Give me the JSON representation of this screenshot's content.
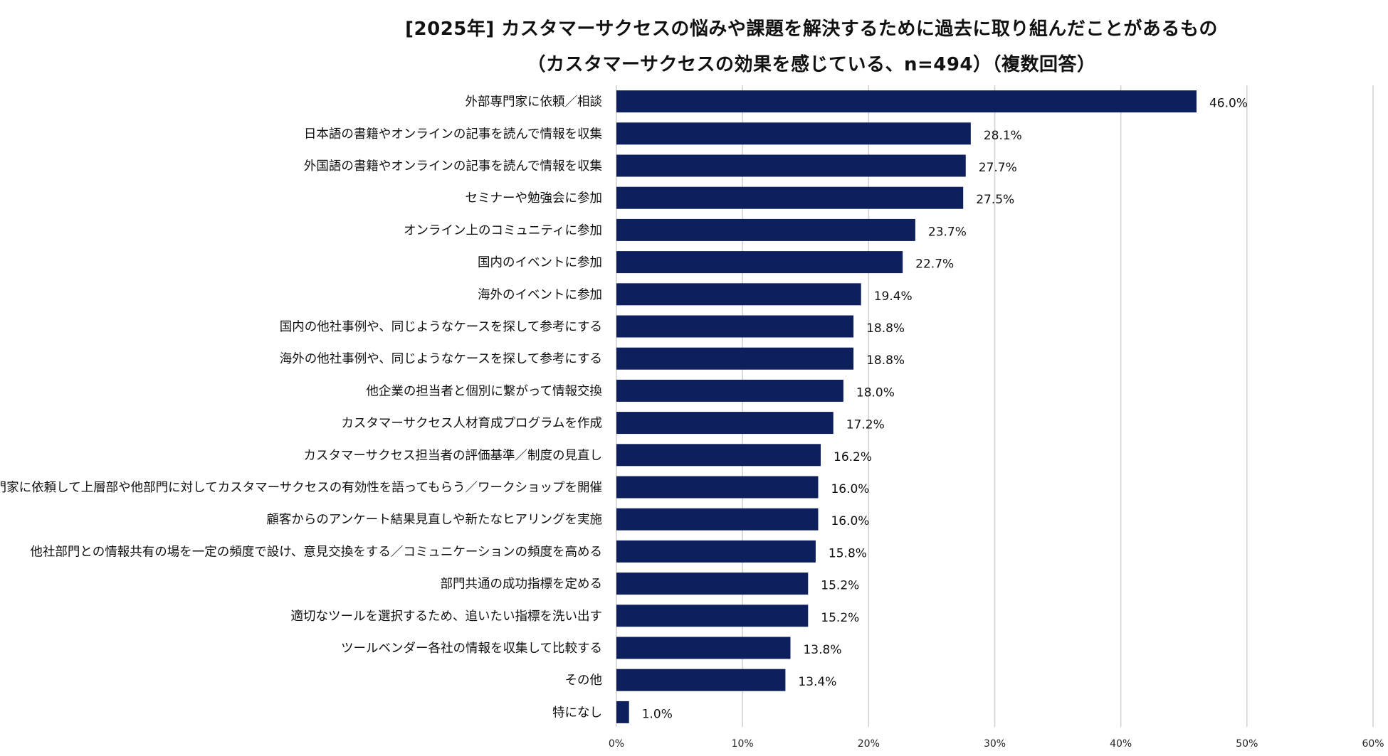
{
  "chart_data": {
    "type": "bar",
    "orientation": "horizontal",
    "title": "[2025年] カスタマーサクセスの悩みや課題を解決するために過去に取り組んだことがあるもの",
    "subtitle": "（カスタマーサクセスの効果を感じている、n=494）（複数回答）",
    "categories": [
      "外部専門家に依頼／相談",
      "日本語の書籍やオンラインの記事を読んで情報を収集",
      "外国語の書籍やオンラインの記事を読んで情報を収集",
      "セミナーや勉強会に参加",
      "オンライン上のコミュニティに参加",
      "国内のイベントに参加",
      "海外のイベントに参加",
      "国内の他社事例や、同じようなケースを探して参考にする",
      "海外の他社事例や、同じようなケースを探して参考にする",
      "他企業の担当者と個別に繋がって情報交換",
      "カスタマーサクセス人材育成プログラムを作成",
      "カスタマーサクセス担当者の評価基準／制度の見直し",
      "専門家に依頼して上層部や他部門に対してカスタマーサクセスの有効性を語ってもらう／ワークショップを開催",
      "顧客からのアンケート結果見直しや新たなヒアリングを実施",
      "他社部門との情報共有の場を一定の頻度で設け、意見交換をする／コミュニケーションの頻度を高める",
      "部門共通の成功指標を定める",
      "適切なツールを選択するため、追いたい指標を洗い出す",
      "ツールベンダー各社の情報を収集して比較する",
      "その他",
      "特になし"
    ],
    "values": [
      46.0,
      28.1,
      27.7,
      27.5,
      23.7,
      22.7,
      19.4,
      18.8,
      18.8,
      18.0,
      17.2,
      16.2,
      16.0,
      16.0,
      15.8,
      15.2,
      15.2,
      13.8,
      13.4,
      1.0
    ],
    "value_labels": [
      "46.0%",
      "28.1%",
      "27.7%",
      "27.5%",
      "23.7%",
      "22.7%",
      "19.4%",
      "18.8%",
      "18.8%",
      "18.0%",
      "17.2%",
      "16.2%",
      "16.0%",
      "16.0%",
      "15.8%",
      "15.2%",
      "15.2%",
      "13.8%",
      "13.4%",
      "1.0%"
    ],
    "xlim": [
      0,
      60
    ],
    "xticks": [
      0,
      10,
      20,
      30,
      40,
      50,
      60
    ],
    "xtick_labels": [
      "0%",
      "10%",
      "20%",
      "30%",
      "40%",
      "50%",
      "60%"
    ],
    "grid": true,
    "bar_color": "#0d1f5c",
    "grid_color": "#d0d0d0"
  }
}
